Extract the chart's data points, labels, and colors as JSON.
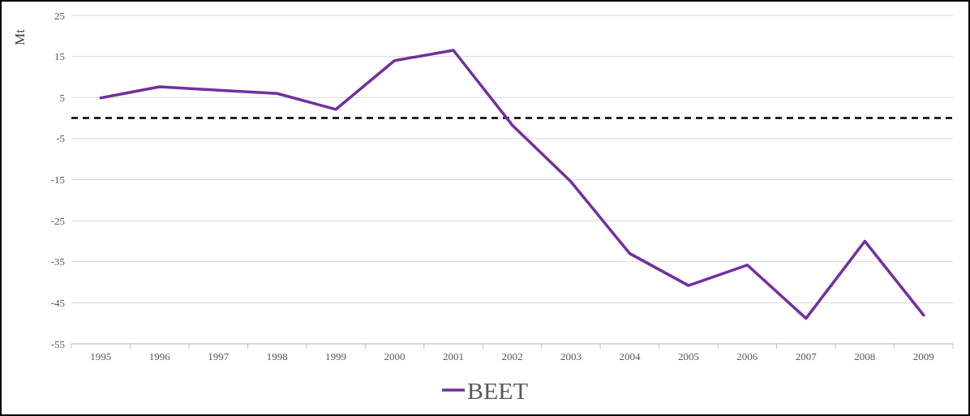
{
  "chart_data": {
    "type": "line",
    "ylabel": "Mt",
    "categories": [
      "1995",
      "1996",
      "1997",
      "1998",
      "1999",
      "2000",
      "2001",
      "2002",
      "2003",
      "2004",
      "2005",
      "2006",
      "2007",
      "2008",
      "2009"
    ],
    "series": [
      {
        "name": "BEET",
        "color": "#7030a0",
        "values": [
          4.9,
          7.6,
          6.8,
          6.0,
          2.1,
          14,
          16.5,
          -1.7,
          -15.5,
          -33,
          -40.8,
          -35.8,
          -48.8,
          -30,
          -48
        ]
      }
    ],
    "ylim": [
      -55,
      25
    ],
    "yticks": [
      -55,
      -45,
      -35,
      -25,
      -15,
      -5,
      5,
      15,
      25
    ],
    "grid": "y",
    "legend": "bottom",
    "marker": "none",
    "line_style": "solid",
    "ref_lines": [
      {
        "axis": "y",
        "value": 0,
        "color": "#000000",
        "line_style": "dashed"
      }
    ]
  }
}
